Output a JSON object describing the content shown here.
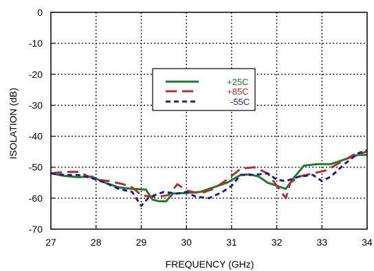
{
  "chart_data": {
    "type": "line",
    "xlabel": "FREQUENCY (GHz)",
    "ylabel": "ISOLATION (dB)",
    "xlim": [
      27,
      34
    ],
    "ylim": [
      -70,
      0
    ],
    "xticks": [
      27,
      28,
      29,
      30,
      31,
      32,
      33,
      34
    ],
    "yticks": [
      0,
      -10,
      -20,
      -30,
      -40,
      -50,
      -60,
      -70
    ],
    "grid": true,
    "grid_style": "dotted",
    "legend_position": "upper-center",
    "series": [
      {
        "name": "+25C",
        "color": "#1f7a2e",
        "dash": "solid",
        "x": [
          27.0,
          27.3,
          27.6,
          27.9,
          28.2,
          28.5,
          28.8,
          29.1,
          29.25,
          29.4,
          29.55,
          29.7,
          30.0,
          30.3,
          30.6,
          30.9,
          31.2,
          31.4,
          31.6,
          31.8,
          32.0,
          32.2,
          32.4,
          32.6,
          32.9,
          33.2,
          33.5,
          33.8,
          34.0
        ],
        "y": [
          -52,
          -52.8,
          -53.2,
          -53,
          -55,
          -56.5,
          -57,
          -57.2,
          -60.5,
          -61,
          -61,
          -58.5,
          -58.3,
          -58,
          -56.5,
          -55,
          -52.5,
          -52.3,
          -53,
          -55,
          -56,
          -57,
          -53,
          -49.5,
          -49,
          -49,
          -47.5,
          -46,
          -46
        ]
      },
      {
        "name": "+85C",
        "color": "#b5312b",
        "dash": "long-dash",
        "x": [
          27.0,
          27.3,
          27.6,
          28.0,
          28.3,
          28.6,
          28.8,
          29.0,
          29.2,
          29.4,
          29.6,
          29.8,
          30.0,
          30.3,
          30.6,
          30.9,
          31.2,
          31.5,
          31.8,
          32.0,
          32.1,
          32.2,
          32.3,
          32.5,
          32.8,
          33.1,
          33.4,
          33.7,
          34.0
        ],
        "y": [
          -52,
          -51.5,
          -51.5,
          -54,
          -54.5,
          -55.5,
          -56.5,
          -59,
          -59.5,
          -59.5,
          -59,
          -55.5,
          -57.5,
          -58.5,
          -57,
          -54,
          -50.5,
          -50,
          -52,
          -56,
          -58,
          -60,
          -55,
          -53,
          -52,
          -51,
          -48.5,
          -46,
          -45
        ]
      },
      {
        "name": "-55C",
        "color": "#1f1f8c",
        "dash": "short-dash",
        "x": [
          27.0,
          27.3,
          27.6,
          27.9,
          28.2,
          28.5,
          28.8,
          29.0,
          29.15,
          29.3,
          29.5,
          29.8,
          30.0,
          30.2,
          30.5,
          30.8,
          31.0,
          31.2,
          31.5,
          31.8,
          32.0,
          32.2,
          32.5,
          32.8,
          33.0,
          33.2,
          33.5,
          33.8,
          34.0
        ],
        "y": [
          -52,
          -52.5,
          -52.5,
          -53.5,
          -55,
          -57,
          -58,
          -62.5,
          -60,
          -59,
          -58,
          -58.5,
          -58,
          -59.5,
          -60,
          -58,
          -56,
          -52.5,
          -52.5,
          -52,
          -54,
          -54.5,
          -53,
          -52.5,
          -54.5,
          -53,
          -49,
          -45.5,
          -44.5
        ]
      }
    ]
  }
}
